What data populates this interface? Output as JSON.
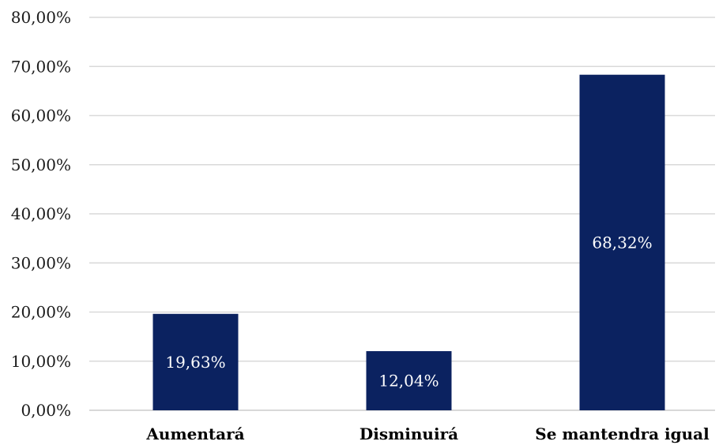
{
  "chart_data": {
    "type": "bar",
    "categories": [
      "Aumentará",
      "Disminuirá",
      "Se mantendra igual"
    ],
    "values": [
      19.63,
      12.04,
      68.32
    ],
    "data_labels": [
      "19,63%",
      "12,04%",
      "68,32%"
    ],
    "title": "",
    "xlabel": "",
    "ylabel": "",
    "ylim": [
      0,
      80
    ],
    "yticks": [
      0,
      10,
      20,
      30,
      40,
      50,
      60,
      70,
      80
    ],
    "ytick_labels": [
      "0,00%",
      "10,00%",
      "20,00%",
      "30,00%",
      "40,00%",
      "50,00%",
      "60,00%",
      "70,00%",
      "80,00%"
    ],
    "grid": true,
    "legend": "none",
    "bar_color": "#0b2260"
  }
}
